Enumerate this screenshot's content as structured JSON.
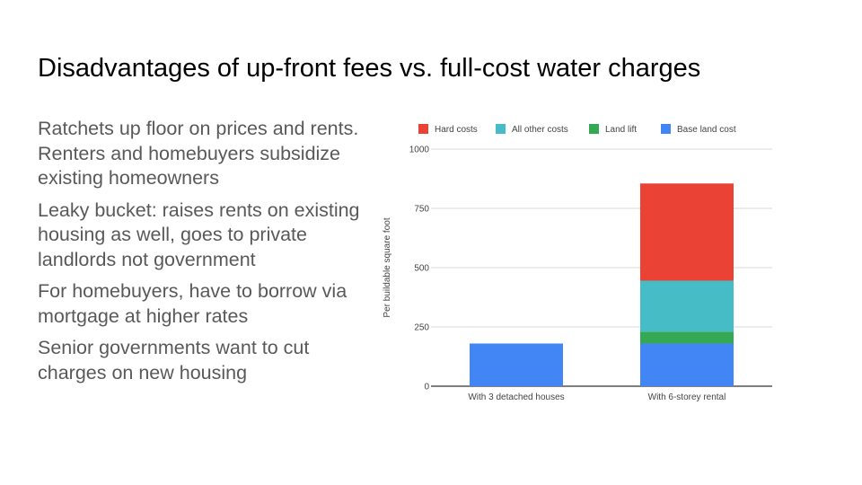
{
  "slide": {
    "title": "Disadvantages of up-front fees vs. full-cost water charges",
    "bullets": [
      "Ratchets up floor on prices and rents. Renters and homebuyers subsidize existing homeowners",
      "Leaky bucket: raises rents on existing housing as well, goes to private landlords not government",
      "For homebuyers, have to borrow via mortgage at higher rates",
      "Senior governments want to cut charges on new housing"
    ]
  },
  "chart_data": {
    "type": "bar",
    "stacked": true,
    "categories": [
      "With 3 detached houses",
      "With 6-storey rental"
    ],
    "series": [
      {
        "name": "Base land cost",
        "color": "#4285f4",
        "values": [
          180,
          180
        ]
      },
      {
        "name": "Land lift",
        "color": "#34a853",
        "values": [
          0,
          50
        ]
      },
      {
        "name": "All other costs",
        "color": "#46bdc6",
        "values": [
          0,
          215
        ]
      },
      {
        "name": "Hard costs",
        "color": "#ea4335",
        "values": [
          0,
          410
        ]
      }
    ],
    "legend_order": [
      "Hard costs",
      "All other costs",
      "Land lift",
      "Base land cost"
    ],
    "legend_position": "top",
    "title": "",
    "xlabel": "",
    "ylabel": "Per buildable square foot",
    "ylim": [
      0,
      1000
    ],
    "yticks": [
      "0",
      "250",
      "500",
      "750",
      "1000"
    ],
    "grid": true
  }
}
